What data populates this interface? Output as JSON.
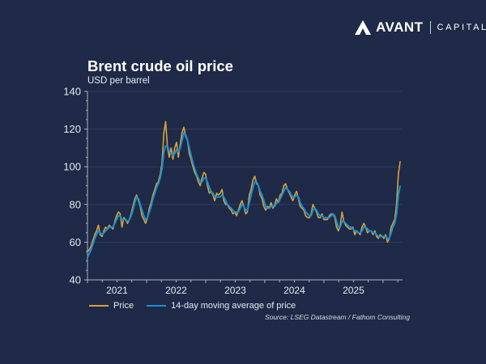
{
  "brand": {
    "name": "AVANT",
    "suffix": "CAPITAL"
  },
  "chart_data": {
    "type": "line",
    "title": "Brent crude oil price",
    "ylabel": "USD per barrel",
    "xlabel": "",
    "ylim": [
      40,
      140
    ],
    "yticks": [
      40,
      60,
      80,
      100,
      120,
      140
    ],
    "xlim": [
      2021.0,
      2026.33
    ],
    "xtick_labels": [
      {
        "label": "2021",
        "at": 2021.5
      },
      {
        "label": "2022",
        "at": 2022.5
      },
      {
        "label": "2023",
        "at": 2023.5
      },
      {
        "label": "2024",
        "at": 2024.5
      },
      {
        "label": "2025",
        "at": 2025.5
      }
    ],
    "grid": true,
    "legend_position": "bottom-left",
    "x_start": 2021.0,
    "x_step_years": 0.04167,
    "series": [
      {
        "name": "Price",
        "color": "#d9a33a",
        "values": [
          55,
          56,
          58,
          61,
          64,
          66,
          69,
          64,
          63,
          66,
          68,
          67,
          69,
          68,
          67,
          71,
          74,
          76,
          75,
          68,
          73,
          72,
          70,
          72,
          75,
          79,
          83,
          85,
          82,
          79,
          74,
          72,
          70,
          73,
          78,
          81,
          85,
          88,
          91,
          92,
          96,
          102,
          118,
          124,
          110,
          105,
          110,
          104,
          110,
          113,
          105,
          112,
          118,
          121,
          116,
          114,
          107,
          104,
          100,
          97,
          95,
          92,
          90,
          94,
          97,
          96,
          90,
          86,
          87,
          85,
          82,
          86,
          85,
          86,
          88,
          82,
          80,
          80,
          78,
          77,
          75,
          76,
          74,
          77,
          80,
          82,
          79,
          75,
          76,
          85,
          88,
          93,
          95,
          91,
          90,
          85,
          83,
          79,
          77,
          79,
          78,
          81,
          78,
          80,
          83,
          81,
          85,
          86,
          90,
          91,
          88,
          86,
          84,
          82,
          85,
          87,
          83,
          79,
          78,
          77,
          74,
          73,
          73,
          75,
          80,
          78,
          76,
          73,
          73,
          75,
          72,
          72,
          72,
          74,
          75,
          75,
          73,
          68,
          66,
          69,
          76,
          71,
          69,
          68,
          67,
          67,
          68,
          64,
          66,
          65,
          64,
          68,
          70,
          68,
          65,
          66,
          66,
          64,
          66,
          63,
          62,
          64,
          63,
          62,
          64,
          60,
          62,
          68,
          70,
          72,
          80,
          96,
          103
        ]
      },
      {
        "name": "14-day moving average of price",
        "color": "#1b8fd1",
        "values": [
          52,
          54,
          56,
          59,
          62,
          64,
          66,
          65,
          64,
          65,
          66,
          67,
          68,
          68,
          68,
          70,
          72,
          74,
          74,
          72,
          72,
          72,
          71,
          72,
          74,
          77,
          81,
          84,
          83,
          80,
          77,
          74,
          72,
          73,
          76,
          79,
          83,
          86,
          89,
          91,
          94,
          99,
          108,
          111,
          111,
          108,
          107,
          106,
          107,
          109,
          108,
          110,
          114,
          118,
          117,
          114,
          110,
          106,
          102,
          99,
          96,
          94,
          92,
          92,
          94,
          94,
          92,
          89,
          87,
          86,
          84,
          84,
          84,
          84,
          85,
          84,
          82,
          80,
          79,
          78,
          77,
          76,
          76,
          76,
          78,
          80,
          79,
          77,
          77,
          81,
          85,
          89,
          92,
          92,
          90,
          87,
          85,
          82,
          79,
          78,
          78,
          79,
          79,
          79,
          81,
          81,
          83,
          85,
          87,
          89,
          88,
          87,
          85,
          84,
          84,
          85,
          84,
          81,
          79,
          78,
          76,
          75,
          74,
          74,
          77,
          78,
          77,
          75,
          74,
          74,
          73,
          73,
          73,
          73,
          74,
          75,
          74,
          71,
          68,
          68,
          71,
          71,
          70,
          69,
          68,
          68,
          67,
          66,
          66,
          65,
          65,
          66,
          68,
          68,
          67,
          66,
          66,
          65,
          65,
          64,
          63,
          63,
          63,
          63,
          63,
          62,
          62,
          65,
          68,
          70,
          75,
          85,
          90
        ]
      }
    ],
    "source": "Source: LSEG Datastream / Fathom Consulting"
  }
}
